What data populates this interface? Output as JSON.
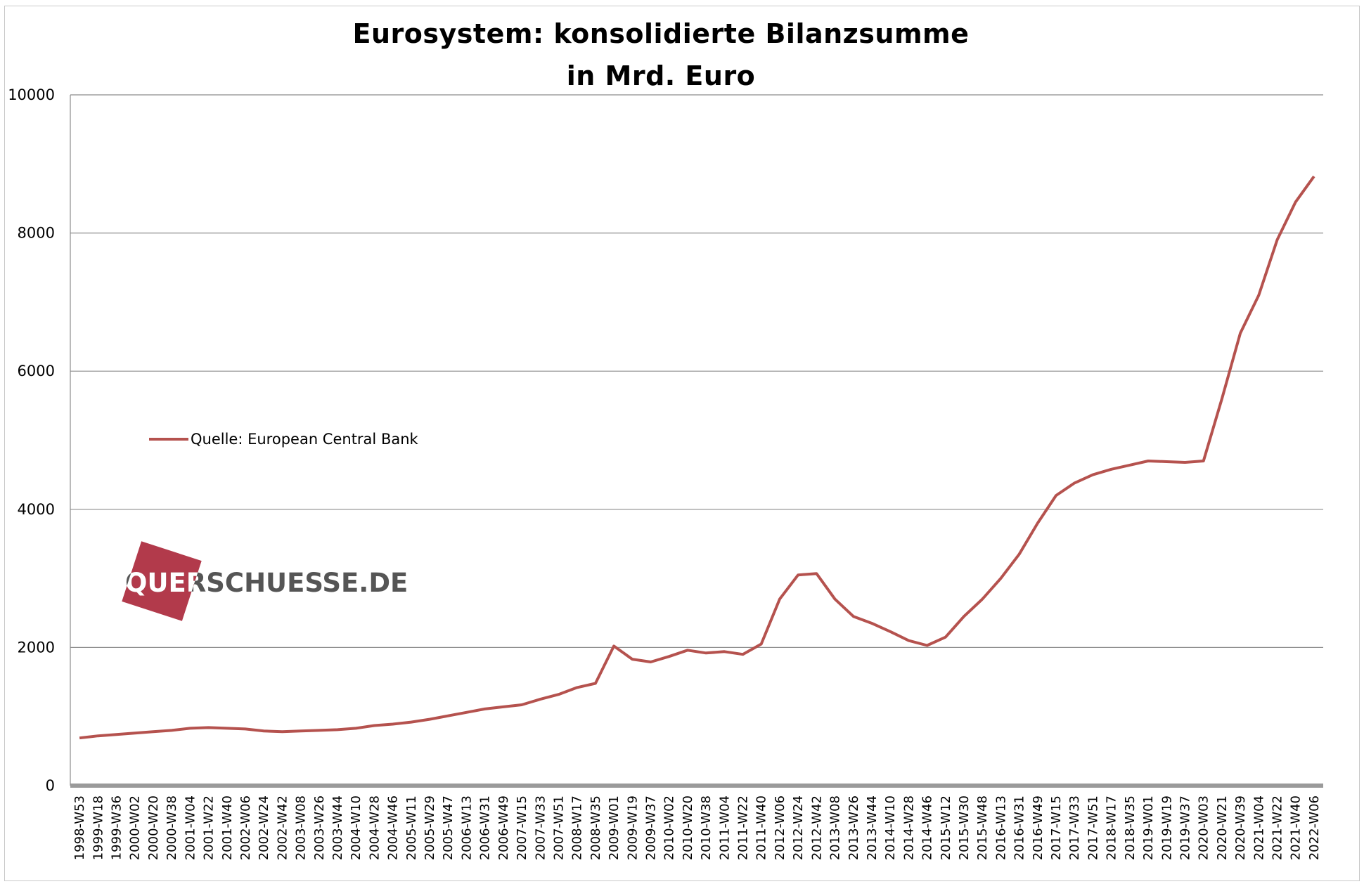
{
  "chart_data": {
    "type": "line",
    "title": "Eurosystem: konsolidierte Bilanzsumme",
    "subtitle": "in Mrd. Euro",
    "ylim": [
      0,
      10000
    ],
    "yticks": [
      0,
      2000,
      4000,
      6000,
      8000,
      10000
    ],
    "ytick_labels": [
      "0",
      "2000",
      "4000",
      "6000",
      "8000",
      "10000"
    ],
    "grid": true,
    "legend_placement": "left",
    "x_tick_labels": [
      "1998-W53",
      "1999-W18",
      "1999-W36",
      "2000-W02",
      "2000-W20",
      "2000-W38",
      "2001-W04",
      "2001-W22",
      "2001-W40",
      "2002-W06",
      "2002-W24",
      "2002-W42",
      "2003-W08",
      "2003-W26",
      "2003-W44",
      "2004-W10",
      "2004-W28",
      "2004-W46",
      "2005-W11",
      "2005-W29",
      "2005-W47",
      "2006-W13",
      "2006-W31",
      "2006-W49",
      "2007-W15",
      "2007-W33",
      "2007-W51",
      "2008-W17",
      "2008-W35",
      "2009-W01",
      "2009-W19",
      "2009-W37",
      "2010-W02",
      "2010-W20",
      "2010-W38",
      "2011-W04",
      "2011-W22",
      "2011-W40",
      "2012-W06",
      "2012-W24",
      "2012-W42",
      "2013-W08",
      "2013-W26",
      "2013-W44",
      "2014-W10",
      "2014-W28",
      "2014-W46",
      "2015-W12",
      "2015-W30",
      "2015-W48",
      "2016-W13",
      "2016-W31",
      "2016-W49",
      "2017-W15",
      "2017-W33",
      "2017-W51",
      "2018-W17",
      "2018-W35",
      "2019-W01",
      "2019-W19",
      "2019-W37",
      "2020-W03",
      "2020-W21",
      "2020-W39",
      "2021-W04",
      "2021-W22",
      "2021-W40",
      "2022-W06"
    ],
    "series": [
      {
        "name": "Quelle: European Central Bank",
        "color": "#b5524e",
        "x": [
          "1998-W53",
          "1999-W18",
          "1999-W36",
          "2000-W02",
          "2000-W20",
          "2000-W38",
          "2001-W04",
          "2001-W22",
          "2001-W40",
          "2002-W06",
          "2002-W24",
          "2002-W42",
          "2003-W08",
          "2003-W26",
          "2003-W44",
          "2004-W10",
          "2004-W28",
          "2004-W46",
          "2005-W11",
          "2005-W29",
          "2005-W47",
          "2006-W13",
          "2006-W31",
          "2006-W49",
          "2007-W15",
          "2007-W33",
          "2007-W51",
          "2008-W17",
          "2008-W35",
          "2009-W01",
          "2009-W19",
          "2009-W37",
          "2010-W02",
          "2010-W20",
          "2010-W38",
          "2011-W04",
          "2011-W22",
          "2011-W40",
          "2012-W06",
          "2012-W24",
          "2012-W42",
          "2013-W08",
          "2013-W26",
          "2013-W44",
          "2014-W10",
          "2014-W28",
          "2014-W46",
          "2015-W12",
          "2015-W30",
          "2015-W48",
          "2016-W13",
          "2016-W31",
          "2016-W49",
          "2017-W15",
          "2017-W33",
          "2017-W51",
          "2018-W17",
          "2018-W35",
          "2019-W01",
          "2019-W19",
          "2019-W37",
          "2020-W03",
          "2020-W21",
          "2020-W39",
          "2021-W04",
          "2021-W22",
          "2021-W40",
          "2022-W06"
        ],
        "values": [
          690,
          720,
          740,
          760,
          780,
          800,
          830,
          840,
          830,
          820,
          790,
          780,
          790,
          800,
          810,
          830,
          870,
          890,
          920,
          960,
          1010,
          1060,
          1110,
          1140,
          1170,
          1250,
          1320,
          1420,
          1480,
          2020,
          1830,
          1790,
          1870,
          1960,
          1920,
          1940,
          1900,
          2050,
          2700,
          3050,
          3070,
          2700,
          2450,
          2350,
          2230,
          2100,
          2030,
          2150,
          2450,
          2700,
          3000,
          3350,
          3800,
          4200,
          4380,
          4500,
          4580,
          4640,
          4700,
          4690,
          4680,
          4700,
          5600,
          6550,
          7100,
          7900,
          8450,
          8820
        ]
      }
    ]
  },
  "logo": {
    "text": "QUERSCHUESSE.DE",
    "color": "#b23a4b"
  }
}
